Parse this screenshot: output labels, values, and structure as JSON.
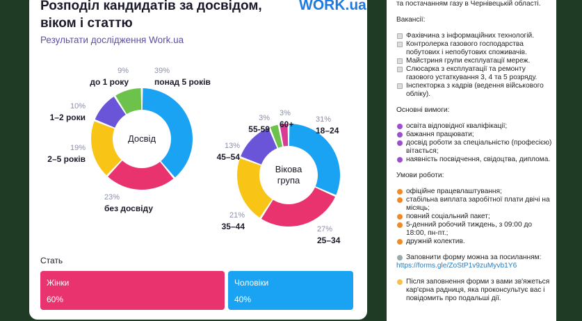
{
  "header": {
    "title": "Розподіл кандидатів за досвідом, віком і статтю",
    "subtitle": "Результати дослідження Work.ua",
    "logo": "WORK.ua"
  },
  "chart_data": [
    {
      "type": "donut",
      "center_label": "Досвід",
      "categories": [
        "понад 5 років",
        "без досвіду",
        "2–5 років",
        "1–2 роки",
        "до 1 року"
      ],
      "values": [
        39,
        23,
        19,
        10,
        9
      ],
      "value_labels": [
        "39%",
        "23%",
        "19%",
        "10%",
        "9%"
      ],
      "colors": [
        "#19a3f2",
        "#e8336e",
        "#f8c516",
        "#6a55d8",
        "#6dc24b"
      ]
    },
    {
      "type": "donut",
      "center_label": "Вікова група",
      "categories": [
        "18–24",
        "25–34",
        "35–44",
        "45–54",
        "55-59",
        "60+"
      ],
      "values": [
        31,
        27,
        21,
        13,
        3,
        3
      ],
      "value_labels": [
        "31%",
        "27%",
        "21%",
        "13%",
        "3%",
        "3%"
      ],
      "colors": [
        "#19a3f2",
        "#e8336e",
        "#f8c516",
        "#6a55d8",
        "#6dc24b",
        "#d83a94"
      ]
    },
    {
      "type": "bar",
      "title": "Стать",
      "categories": [
        "Жінки",
        "Чоловіки"
      ],
      "values": [
        60,
        40
      ],
      "value_labels": [
        "60%",
        "40%"
      ],
      "colors": [
        "#e8336e",
        "#19a3f2"
      ]
    }
  ],
  "message": {
    "intro": "та постачанням газу в Чернівецькій області.",
    "vacancies_title": "Вакансії:",
    "vacancies": [
      "Фахівчина з інформаційних технологій.",
      "Контролерка газового господарства побутових і непобутових споживачів.",
      "Майстриня групи експлуатації мереж.",
      "Слюсарка з експлуатації та ремонту газового устаткування 3, 4 та 5 розряду.",
      "Інспекторка з кадрів (ведення військового обліку)."
    ],
    "requirements_title": "Основні вимоги:",
    "requirements": [
      "освіта відповідної кваліфікації;",
      "бажання працювати;",
      "досвід роботи за спеціальністю (професією) вітається;",
      "наявність посвідчення, свідоцтва, диплома."
    ],
    "conditions_title": "Умови роботи:",
    "conditions": [
      "офіційне працевлаштування;",
      "стабільна виплата заробітної плати двічі на місяць;",
      "повний соціальний пакет;",
      "5-денний робочий тиждень, з 09:00 до 18:00, пн-пт.;",
      "дружній колектив."
    ],
    "form_text": "Заповнити форму можна за посиланням:",
    "link": "https://forms.gle/ZoStP1v9zuMyvb1Y6",
    "after_text": "Після заповнення форми з вами зв'яжеться кар'єрна радниця, яка проконсультує вас і повідомить про подальші дії."
  }
}
